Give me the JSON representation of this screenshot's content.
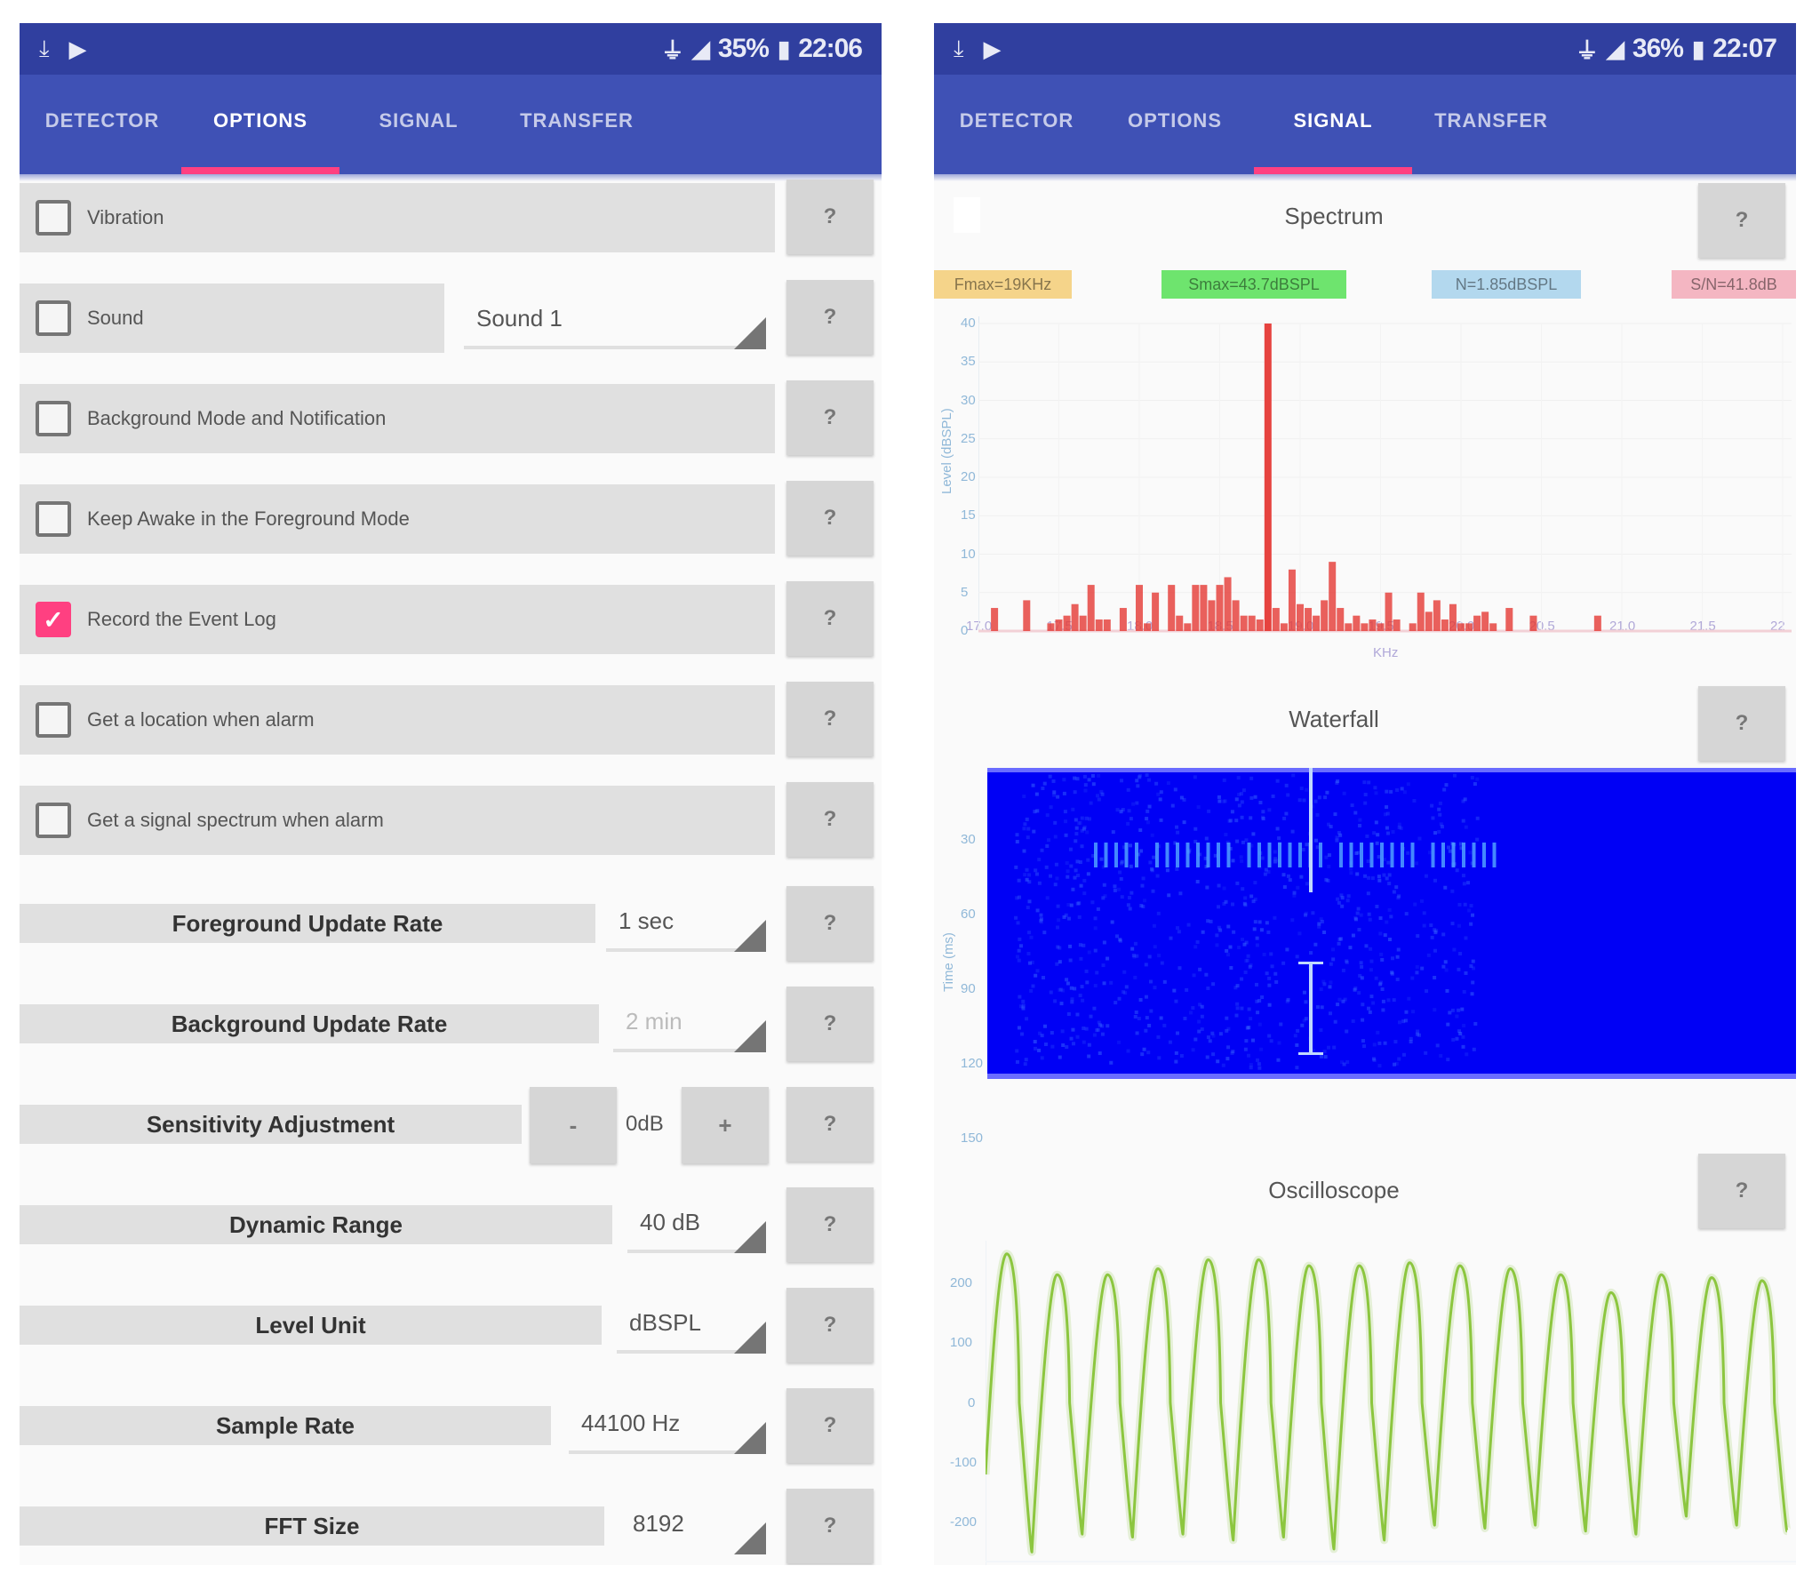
{
  "left_screen": {
    "status_bar": {
      "left_icons": [
        "download-icon",
        "play-store-icon"
      ],
      "right_icons": [
        "usb-icon",
        "signal-icon"
      ],
      "battery": "35%",
      "time": "22:06"
    },
    "tabs": [
      {
        "label": "DETECTOR",
        "active": false
      },
      {
        "label": "OPTIONS",
        "active": true
      },
      {
        "label": "SIGNAL",
        "active": false
      },
      {
        "label": "TRANSFER",
        "active": false
      }
    ],
    "checkbox_options": [
      {
        "label": "Vibration",
        "checked": false
      },
      {
        "label": "Sound",
        "checked": false,
        "spinner_value": "Sound 1"
      },
      {
        "label": "Background Mode and Notification",
        "checked": false
      },
      {
        "label": "Keep Awake in the Foreground Mode",
        "checked": false
      },
      {
        "label": "Record the Event Log",
        "checked": true
      },
      {
        "label": "Get a location when alarm",
        "checked": false
      },
      {
        "label": "Get a signal spectrum when alarm",
        "checked": false
      }
    ],
    "settings": [
      {
        "label": "Foreground Update Rate",
        "value": "1 sec",
        "enabled": true
      },
      {
        "label": "Background Update Rate",
        "value": "2 min",
        "enabled": false
      },
      {
        "label": "Sensitivity Adjustment",
        "value": "0dB",
        "minus": "-",
        "plus": "+"
      },
      {
        "label": "Dynamic Range",
        "value": "40 dB",
        "enabled": true
      },
      {
        "label": "Level Unit",
        "value": "dBSPL",
        "enabled": true
      },
      {
        "label": "Sample Rate",
        "value": "44100 Hz",
        "enabled": true
      },
      {
        "label": "FFT Size",
        "value": "8192",
        "enabled": true
      }
    ],
    "help_label": "?"
  },
  "right_screen": {
    "status_bar": {
      "left_icons": [
        "download-icon",
        "play-store-icon"
      ],
      "right_icons": [
        "usb-icon",
        "signal-icon"
      ],
      "battery": "36%",
      "time": "22:07"
    },
    "tabs": [
      {
        "label": "DETECTOR",
        "active": false
      },
      {
        "label": "OPTIONS",
        "active": false
      },
      {
        "label": "SIGNAL",
        "active": true
      },
      {
        "label": "TRANSFER",
        "active": false
      }
    ],
    "spectrum": {
      "title": "Spectrum",
      "metrics": [
        {
          "text": "Fmax=19KHz",
          "color": "#f5d48a"
        },
        {
          "text": "Smax=43.7dBSPL",
          "color": "#6ee46e"
        },
        {
          "text": "N=1.85dBSPL",
          "color": "#b3d8ee"
        },
        {
          "text": "S/N=41.8dB",
          "color": "#f4b6c2"
        }
      ]
    },
    "waterfall": {
      "title": "Waterfall",
      "background_color": "#0000f5"
    },
    "oscilloscope": {
      "title": "Oscilloscope",
      "line_color": "#8cc63f"
    },
    "help_label": "?"
  },
  "chart_data": [
    {
      "type": "bar",
      "title": "Spectrum",
      "xlabel": "KHz",
      "ylabel": "Level (dBSPL)",
      "x_ticks": [
        "17.0",
        "17.5",
        "18.0",
        "18.5",
        "19.0",
        "19.5",
        "20.0",
        "20.5",
        "21.0",
        "21.5",
        "22"
      ],
      "y_ticks": [
        "0",
        "5",
        "10",
        "15",
        "20",
        "25",
        "30",
        "35",
        "40"
      ],
      "xlim": [
        17.0,
        22.0
      ],
      "ylim": [
        0,
        40
      ],
      "grid": true,
      "color": "#e53935",
      "x": [
        17.1,
        17.3,
        17.45,
        17.5,
        17.55,
        17.6,
        17.65,
        17.7,
        17.75,
        17.8,
        17.9,
        18.0,
        18.05,
        18.1,
        18.2,
        18.25,
        18.3,
        18.35,
        18.4,
        18.45,
        18.5,
        18.55,
        18.6,
        18.65,
        18.7,
        18.75,
        18.8,
        18.85,
        18.9,
        18.95,
        19.0,
        19.05,
        19.1,
        19.15,
        19.2,
        19.25,
        19.3,
        19.35,
        19.4,
        19.45,
        19.5,
        19.55,
        19.6,
        19.7,
        19.75,
        19.8,
        19.85,
        19.9,
        19.95,
        20.0,
        20.05,
        20.1,
        20.15,
        20.2,
        20.3,
        20.45,
        20.85
      ],
      "values": [
        3,
        4,
        1,
        1.5,
        2,
        3.5,
        2,
        6,
        1.5,
        1.5,
        3,
        6,
        1,
        5,
        6,
        2,
        1,
        6,
        6,
        4,
        6,
        7,
        4,
        2,
        2,
        1.5,
        40,
        3,
        1,
        8,
        3.5,
        3,
        2,
        4,
        9,
        3,
        1,
        2,
        1,
        1.5,
        1,
        5,
        1.5,
        1,
        5,
        2.5,
        4,
        1.5,
        3.5,
        1,
        1,
        2,
        2.5,
        1,
        3,
        2,
        2
      ]
    },
    {
      "type": "heatmap",
      "title": "Waterfall",
      "ylabel": "Time (ms)",
      "y_ticks": [
        "30",
        "60",
        "90",
        "120",
        "150"
      ],
      "notes": "Blue background with a vertical bright line near 19 KHz and a row of short tone marks around 30-40 ms"
    },
    {
      "type": "line",
      "title": "Oscilloscope",
      "y_ticks": [
        "200",
        "100",
        "0",
        "-100",
        "-200"
      ],
      "ylim": [
        -260,
        260
      ],
      "color": "#8cc63f",
      "cycles": 16,
      "peak_values": [
        250,
        215,
        215,
        225,
        240,
        240,
        230,
        230,
        235,
        230,
        225,
        215,
        185,
        215,
        210,
        205
      ],
      "trough_values": [
        -250,
        -220,
        -225,
        -220,
        -230,
        -225,
        -245,
        -230,
        -205,
        -210,
        -205,
        -215,
        -220,
        -190,
        -205,
        -215
      ]
    }
  ]
}
